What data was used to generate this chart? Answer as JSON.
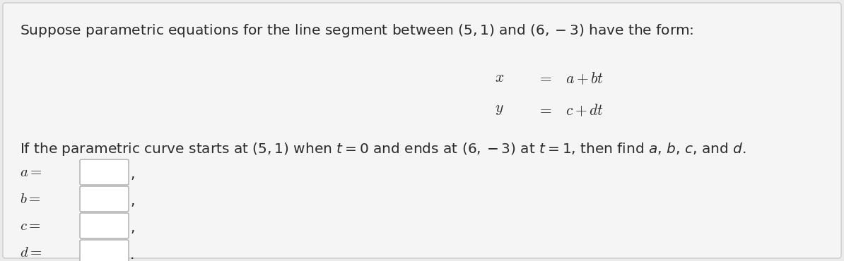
{
  "bg_color": "#ebebeb",
  "card_color": "#f5f5f5",
  "text_color": "#2b2b2b",
  "eq_color": "#2b2b2b",
  "label_color": "#2b2b2b",
  "border_color": "#cccccc",
  "box_border_color": "#aaaaaa",
  "box_fill": "#ffffff",
  "title_line": "Suppose parametric equations for the line segment between $(5, 1)$ and $(6, -3)$ have the form:",
  "eq1": "$x$",
  "eq1_eq": "$=$",
  "eq1_rhs": "$a + bt$",
  "eq2": "$y$",
  "eq2_eq": "$=$",
  "eq2_rhs": "$c + dt$",
  "body_line": "If the parametric curve starts at $(5, 1)$ when $t = 0$ and ends at $(6, -3)$ at $t = 1$, then find $a$, $b$, $c$, and $d$.",
  "labels": [
    "$a$",
    "$b$",
    "$c$",
    "$d$"
  ],
  "figsize": [
    11.94,
    3.7
  ],
  "dpi": 100
}
